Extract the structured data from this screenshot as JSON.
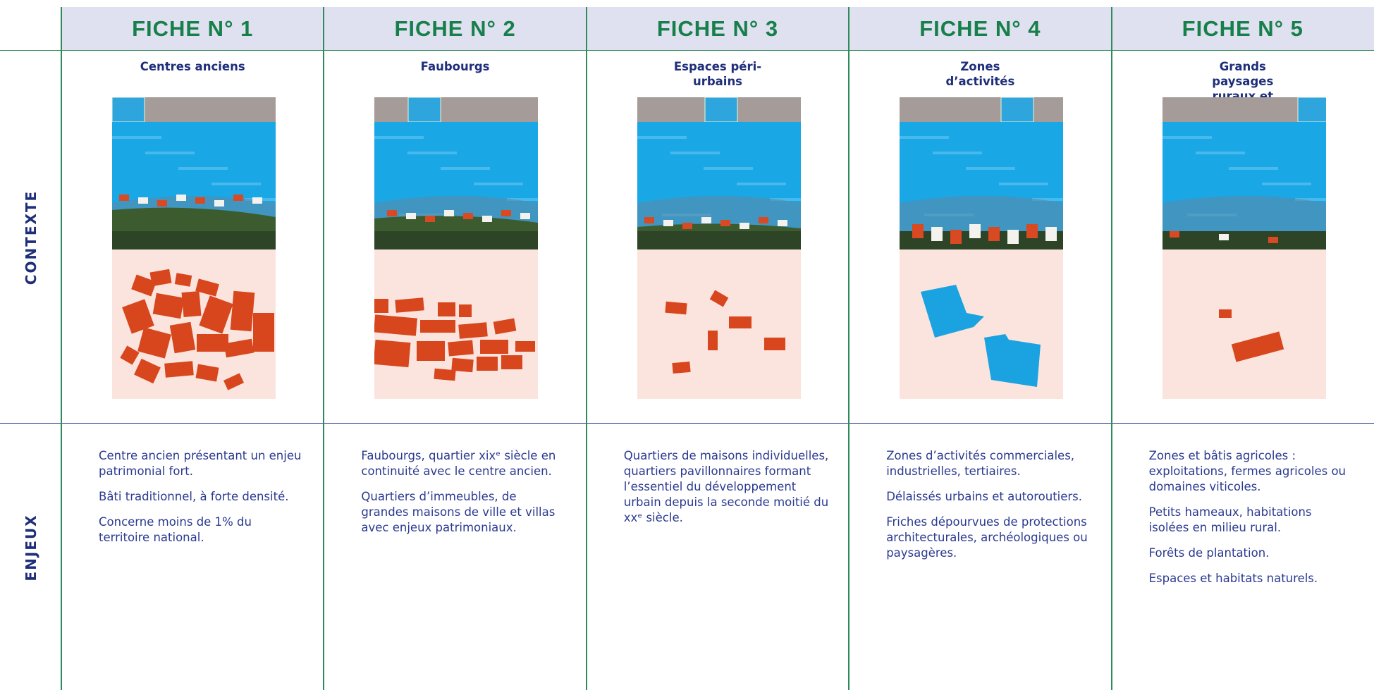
{
  "row_labels": [
    "CONTEXTE",
    "ENJEUX"
  ],
  "columns": [
    {
      "title": "FICHE N° 1",
      "subtitle": "Centres anciens",
      "paragraphs": [
        "Centre ancien présentant un enjeu patrimonial fort.",
        "Bâti traditionnel, à forte densité.",
        "Concerne moins de 1% du territoire national."
      ]
    },
    {
      "title": "FICHE N° 2",
      "subtitle": "Faubourgs",
      "paragraphs": [
        "Faubourgs, quartier xixᵉ siècle en continuité avec le centre ancien.",
        "Quartiers d’immeubles, de grandes maisons de ville et villas avec enjeux patrimoniaux."
      ]
    },
    {
      "title": "FICHE N° 3",
      "subtitle": "Espaces péri-urbains",
      "paragraphs": [
        "Quartiers de maisons individuelles, quartiers pavillonnaires formant l’essentiel du développement urbain depuis la seconde moitié du xxᵉ siècle."
      ]
    },
    {
      "title": "FICHE N° 4",
      "subtitle": "Zones d’activités",
      "paragraphs": [
        "Zones d’activités commerciales, industrielles, tertiaires.",
        "Délaissés urbains et autoroutiers.",
        "Friches dépourvues de protections architecturales, archéologiques ou paysagères."
      ]
    },
    {
      "title": "FICHE N° 5",
      "subtitle": "Grands paysages ruraux et naturels",
      "paragraphs": [
        "Zones et bâtis agricoles : exploitations, fermes agricoles ou domaines viticoles.",
        "Petits hameaux, habitations isolées en milieu rural.",
        "Forêts de plantation.",
        "Espaces et habitats naturels."
      ]
    }
  ]
}
